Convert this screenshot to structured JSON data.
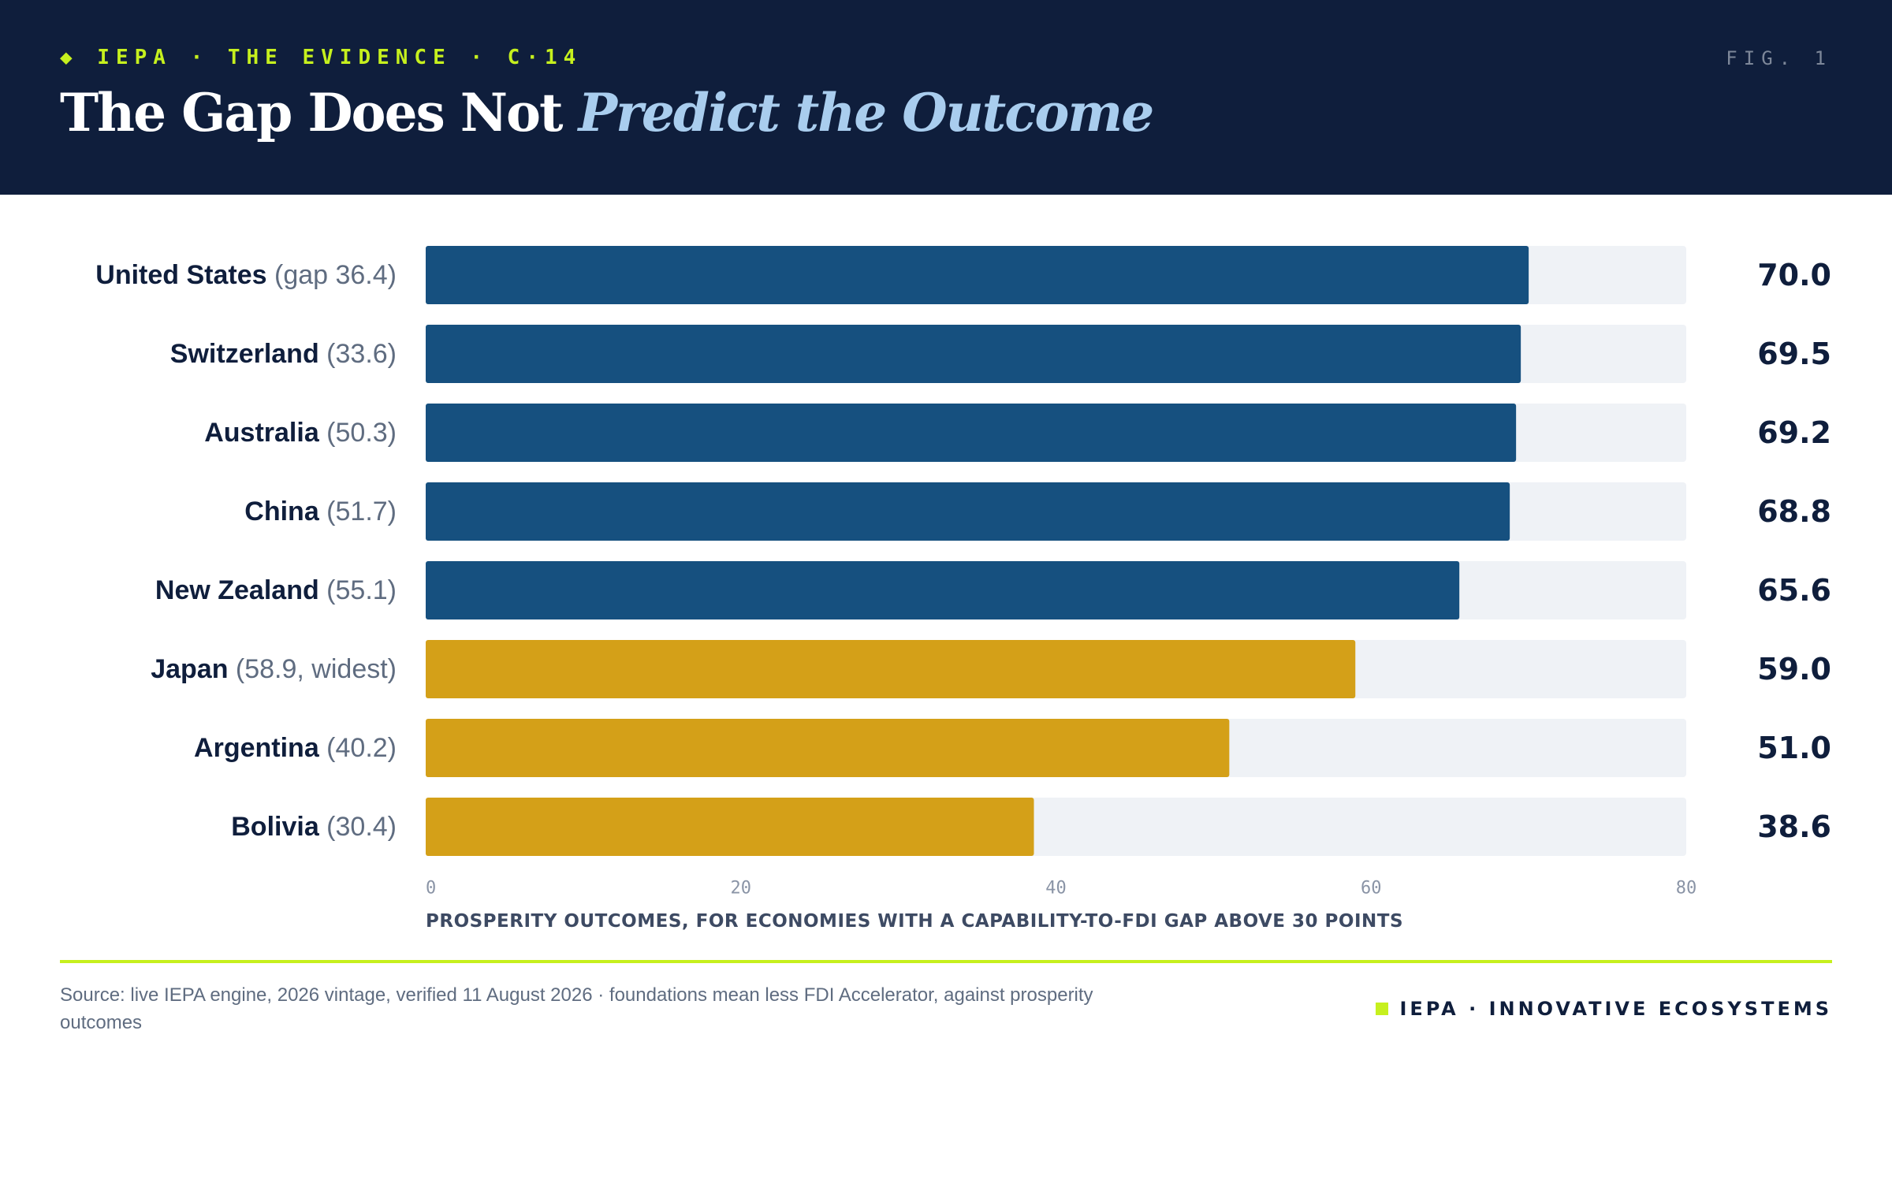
{
  "header": {
    "eyebrow": "◆  IEPA  ·  THE EVIDENCE  ·  C·14",
    "fig_label": "FIG. 1",
    "title_main": "The Gap Does Not ",
    "title_accent": "Predict the Outcome"
  },
  "chart_data": {
    "type": "bar",
    "orientation": "horizontal",
    "categories": [
      "United States",
      "Switzerland",
      "Australia",
      "China",
      "New Zealand",
      "Japan",
      "Argentina",
      "Bolivia"
    ],
    "category_notes": [
      "(gap 36.4)",
      "(33.6)",
      "(50.3)",
      "(51.7)",
      "(55.1)",
      "(58.9, widest)",
      "(40.2)",
      "(30.4)"
    ],
    "values": [
      70.0,
      69.5,
      69.2,
      68.8,
      65.6,
      59.0,
      51.0,
      38.6
    ],
    "value_labels": [
      "70.0",
      "69.5",
      "69.2",
      "68.8",
      "65.6",
      "59.0",
      "51.0",
      "38.6"
    ],
    "bar_colors": [
      "#16507f",
      "#16507f",
      "#16507f",
      "#16507f",
      "#16507f",
      "#d4a018",
      "#d4a018",
      "#d4a018"
    ],
    "track_color": "#eff2f6",
    "xlim": [
      0,
      80
    ],
    "xticks": [
      0,
      20,
      40,
      60,
      80
    ],
    "xlabel": "PROSPERITY OUTCOMES, FOR ECONOMIES WITH A CAPABILITY-TO-FDI GAP ABOVE 30 POINTS",
    "grid": false
  },
  "footer": {
    "source": "Source: live IEPA engine, 2026 vintage, verified 11 August 2026 · foundations mean less FDI Accelerator, against prosperity outcomes",
    "brand": "IEPA · INNOVATIVE ECOSYSTEMS"
  },
  "colors": {
    "header_bg": "#0f1e3c",
    "accent_lime": "#c6f01e",
    "title_accent": "#a9cdee",
    "bar_blue": "#16507f",
    "bar_gold": "#d4a018"
  }
}
